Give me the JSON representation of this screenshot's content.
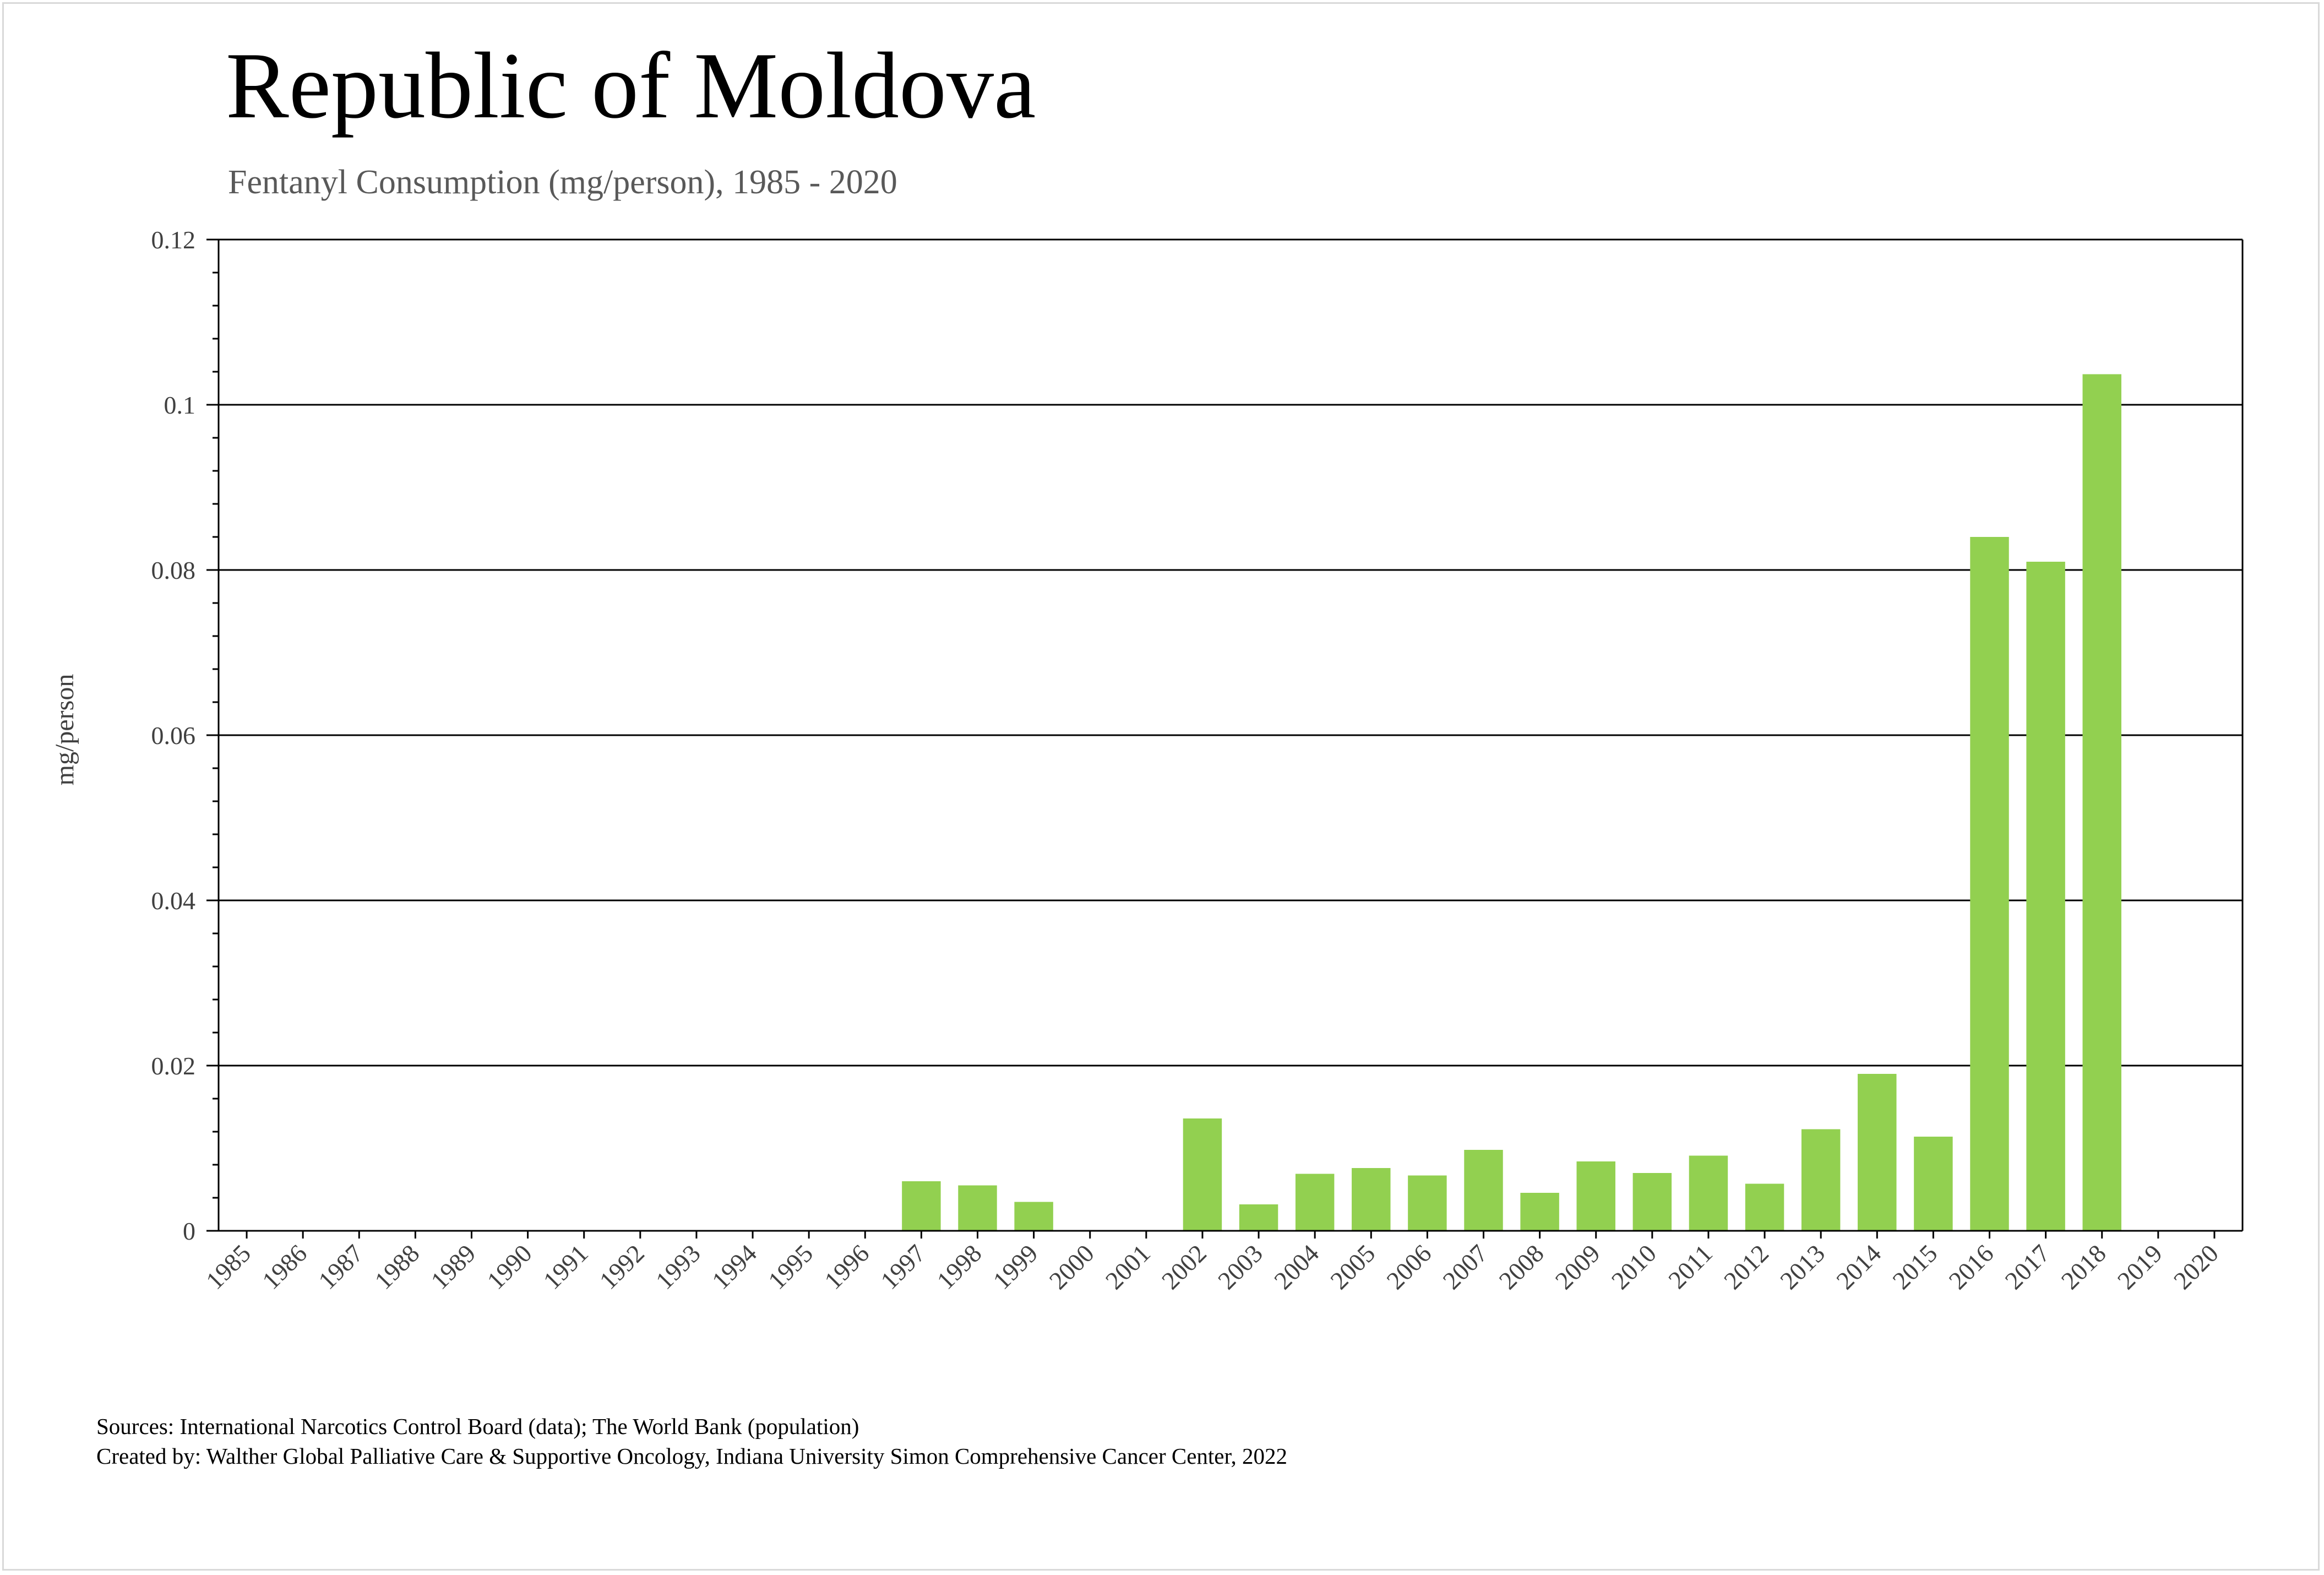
{
  "chart_data": {
    "type": "bar",
    "title": "Republic of Moldova",
    "subtitle": "Fentanyl Consumption (mg/person), 1985 - 2020",
    "xlabel": "",
    "ylabel": "mg/person",
    "ylim": [
      0,
      0.12
    ],
    "yticks": [
      "0",
      "0.02",
      "0.04",
      "0.06",
      "0.08",
      "0.1",
      "0.12"
    ],
    "grid": true,
    "bar_color": "#92d050",
    "categories": [
      "1985",
      "1986",
      "1987",
      "1988",
      "1989",
      "1990",
      "1991",
      "1992",
      "1993",
      "1994",
      "1995",
      "1996",
      "1997",
      "1998",
      "1999",
      "2000",
      "2001",
      "2002",
      "2003",
      "2004",
      "2005",
      "2006",
      "2007",
      "2008",
      "2009",
      "2010",
      "2011",
      "2012",
      "2013",
      "2014",
      "2015",
      "2016",
      "2017",
      "2018",
      "2019",
      "2020"
    ],
    "values": [
      0,
      0,
      0,
      0,
      0,
      0,
      0,
      0,
      0,
      0,
      0,
      0,
      0.006,
      0.0055,
      0.0035,
      0,
      0,
      0.0136,
      0.0032,
      0.0069,
      0.0076,
      0.0067,
      0.0098,
      0.0046,
      0.0084,
      0.007,
      0.0091,
      0.0057,
      0.0123,
      0.019,
      0.0114,
      0.084,
      0.081,
      0.1037,
      0,
      0
    ]
  },
  "footer": {
    "sources": "Sources: International Narcotics Control Board (data); The World Bank (population)",
    "created_by": "Created by: Walther Global Palliative Care & Supportive Oncology, Indiana University Simon Comprehensive Cancer Center, 2022"
  }
}
